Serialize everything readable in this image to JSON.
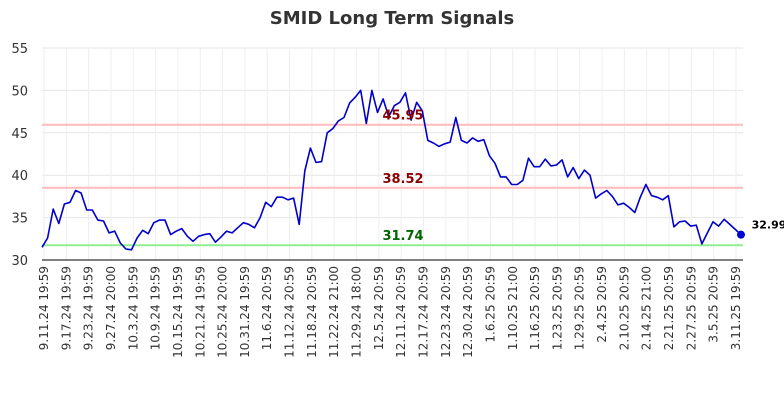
{
  "chart_data": {
    "type": "line",
    "title": "SMID Long Term Signals",
    "xlabel": "",
    "ylabel": "",
    "ylim": [
      30,
      55
    ],
    "yticks": [
      "30",
      "35",
      "40",
      "45",
      "50",
      "55"
    ],
    "grid": true,
    "x_tick_labels": [
      "9.11.24 19:59",
      "9.17.24 19:59",
      "9.23.24 19:59",
      "9.27.24 20:00",
      "10.3.24 19:59",
      "10.9.24 19:59",
      "10.15.24 19:59",
      "10.21.24 19:59",
      "10.25.24 20:00",
      "10.31.24 19:59",
      "11.6.24 20:59",
      "11.12.24 20:59",
      "11.18.24 20:59",
      "11.22.24 21:00",
      "11.29.24 18:00",
      "12.5.24 20:59",
      "12.11.24 20:59",
      "12.17.24 20:59",
      "12.23.24 20:59",
      "12.30.24 20:59",
      "1.6.25 20:59",
      "1.10.25 21:00",
      "1.16.25 20:59",
      "1.23.25 20:59",
      "1.29.25 20:59",
      "2.4.25 20:59",
      "2.10.25 20:59",
      "2.14.25 21:00",
      "2.21.25 20:59",
      "2.27.25 20:59",
      "3.5.25 20:59",
      "3.11.25 19:59"
    ],
    "reference_lines": [
      {
        "value": 45.95,
        "label": "45.95",
        "line_color": "#ffbbbb",
        "label_color": "#8b0000"
      },
      {
        "value": 38.52,
        "label": "38.52",
        "line_color": "#ffbbbb",
        "label_color": "#8b0000"
      },
      {
        "value": 31.74,
        "label": "31.74",
        "line_color": "#90ee90",
        "label_color": "#006400"
      }
    ],
    "series": [
      {
        "color": "#0000cc",
        "values": [
          31.5,
          32.6,
          36.0,
          34.3,
          36.6,
          36.8,
          38.2,
          37.9,
          35.9,
          35.9,
          34.7,
          34.6,
          33.2,
          33.4,
          32.0,
          31.3,
          31.2,
          32.6,
          33.5,
          33.1,
          34.4,
          34.7,
          34.7,
          33.0,
          33.4,
          33.7,
          32.8,
          32.2,
          32.8,
          33.0,
          33.1,
          32.1,
          32.7,
          33.4,
          33.2,
          33.8,
          34.4,
          34.2,
          33.8,
          35.0,
          36.8,
          36.3,
          37.4,
          37.4,
          37.1,
          37.3,
          34.2,
          40.5,
          43.2,
          41.5,
          41.6,
          45.0,
          45.5,
          46.4,
          46.8,
          48.5,
          49.2,
          50.0,
          46.1,
          50.0,
          47.4,
          49.0,
          46.9,
          48.2,
          48.6,
          49.7,
          46.5,
          48.6,
          47.6,
          44.1,
          43.8,
          43.4,
          43.7,
          43.9,
          46.8,
          44.1,
          43.8,
          44.4,
          44.0,
          44.2,
          42.3,
          41.4,
          39.8,
          39.8,
          38.9,
          38.9,
          39.4,
          42.0,
          41.0,
          41.0,
          41.9,
          41.1,
          41.2,
          41.8,
          39.8,
          40.9,
          39.6,
          40.6,
          40.0,
          37.3,
          37.8,
          38.2,
          37.5,
          36.5,
          36.7,
          36.2,
          35.6,
          37.4,
          38.9,
          37.6,
          37.4,
          37.1,
          37.6,
          33.9,
          34.5,
          34.6,
          34.0,
          34.1,
          31.9,
          33.2,
          34.5,
          34.0,
          34.8,
          34.2,
          33.6,
          32.99
        ]
      }
    ],
    "last_value_label": "32.99"
  }
}
